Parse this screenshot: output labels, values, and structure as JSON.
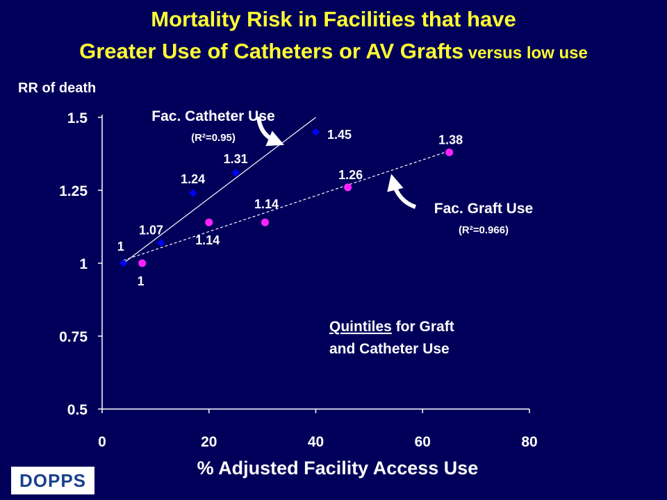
{
  "title": {
    "line1": "Mortality Risk in Facilities that have",
    "line2_main": "Greater Use of Catheters or AV Grafts",
    "line2_small": " versus low use"
  },
  "logo": {
    "text": "DOPPS"
  },
  "colors": {
    "background": "#00005a",
    "title": "#ffff33",
    "text": "#ffffff",
    "catheter": "#0000ff",
    "graft": "#ff22ff"
  },
  "chart_data": {
    "type": "scatter",
    "ylabel": "RR of death",
    "xlabel": "% Adjusted Facility Access Use",
    "xlim": [
      0,
      80
    ],
    "ylim": [
      0.5,
      1.5
    ],
    "x_ticks": [
      "0",
      "20",
      "40",
      "60",
      "80"
    ],
    "y_ticks": [
      "1.5",
      "1.25",
      "1",
      "0.75",
      "0.5"
    ],
    "grid": false,
    "series": [
      {
        "name": "Fac. Catheter Use",
        "r2": "(R²=0.95)",
        "marker": "diamond",
        "x": [
          4,
          11,
          17,
          25,
          40
        ],
        "y": [
          1,
          1.07,
          1.24,
          1.31,
          1.45
        ],
        "labels": [
          "1",
          "1.07",
          "1.24",
          "1.31",
          "1.45"
        ],
        "trend": {
          "x": [
            4,
            40
          ],
          "y": [
            1.0,
            1.5
          ]
        }
      },
      {
        "name": "Fac. Graft Use",
        "r2": "(R²=0.966)",
        "marker": "circle",
        "x": [
          7.5,
          20,
          30.5,
          46,
          65
        ],
        "y": [
          1,
          1.14,
          1.14,
          1.26,
          1.38
        ],
        "labels": [
          "1",
          "1.14",
          "1.14",
          "1.26",
          "1.38"
        ],
        "trend": {
          "x": [
            4,
            65
          ],
          "y": [
            1.01,
            1.385
          ]
        }
      }
    ],
    "note": {
      "underlined": "Quintiles",
      "rest": " for Graft",
      "line2": "and Catheter Use"
    }
  }
}
